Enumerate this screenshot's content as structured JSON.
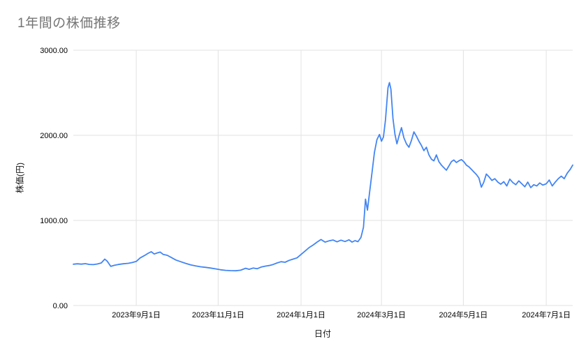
{
  "chart_data": {
    "type": "line",
    "title": "1年間の株価推移",
    "xlabel": "日付",
    "ylabel": "株価(円)",
    "ylim": [
      0,
      3000
    ],
    "grid": true,
    "legend": "none",
    "line_color": "#4285f4",
    "gridline_color": "#e2e2e2",
    "tick_label_color": "#000000",
    "y_ticks": [
      {
        "value": 0,
        "label": "0.00"
      },
      {
        "value": 1000,
        "label": "1000.00"
      },
      {
        "value": 2000,
        "label": "2000.00"
      },
      {
        "value": 3000,
        "label": "3000.00"
      }
    ],
    "x_ticks": [
      {
        "pos": 0.126,
        "label": "2023年9月1日"
      },
      {
        "pos": 0.29,
        "label": "2023年11月1日"
      },
      {
        "pos": 0.456,
        "label": "2024年1月1日"
      },
      {
        "pos": 0.617,
        "label": "2024年3月1日"
      },
      {
        "pos": 0.781,
        "label": "2024年5月1日"
      },
      {
        "pos": 0.947,
        "label": "2024年7月1日"
      }
    ],
    "series": [
      {
        "name": "株価",
        "points": [
          [
            0.0,
            485
          ],
          [
            0.008,
            490
          ],
          [
            0.016,
            486
          ],
          [
            0.024,
            492
          ],
          [
            0.032,
            483
          ],
          [
            0.04,
            480
          ],
          [
            0.048,
            488
          ],
          [
            0.056,
            500
          ],
          [
            0.063,
            545
          ],
          [
            0.068,
            520
          ],
          [
            0.075,
            460
          ],
          [
            0.082,
            472
          ],
          [
            0.09,
            482
          ],
          [
            0.1,
            490
          ],
          [
            0.11,
            496
          ],
          [
            0.118,
            505
          ],
          [
            0.126,
            518
          ],
          [
            0.134,
            560
          ],
          [
            0.142,
            585
          ],
          [
            0.15,
            615
          ],
          [
            0.156,
            632
          ],
          [
            0.162,
            605
          ],
          [
            0.168,
            618
          ],
          [
            0.174,
            628
          ],
          [
            0.18,
            600
          ],
          [
            0.188,
            590
          ],
          [
            0.196,
            565
          ],
          [
            0.205,
            535
          ],
          [
            0.215,
            515
          ],
          [
            0.225,
            495
          ],
          [
            0.235,
            478
          ],
          [
            0.245,
            465
          ],
          [
            0.255,
            455
          ],
          [
            0.265,
            448
          ],
          [
            0.275,
            440
          ],
          [
            0.285,
            430
          ],
          [
            0.295,
            420
          ],
          [
            0.305,
            413
          ],
          [
            0.315,
            410
          ],
          [
            0.325,
            408
          ],
          [
            0.335,
            415
          ],
          [
            0.345,
            438
          ],
          [
            0.352,
            425
          ],
          [
            0.36,
            440
          ],
          [
            0.368,
            432
          ],
          [
            0.376,
            452
          ],
          [
            0.384,
            462
          ],
          [
            0.392,
            470
          ],
          [
            0.4,
            482
          ],
          [
            0.408,
            500
          ],
          [
            0.416,
            515
          ],
          [
            0.424,
            508
          ],
          [
            0.432,
            530
          ],
          [
            0.44,
            545
          ],
          [
            0.448,
            560
          ],
          [
            0.456,
            600
          ],
          [
            0.464,
            640
          ],
          [
            0.472,
            680
          ],
          [
            0.48,
            710
          ],
          [
            0.488,
            745
          ],
          [
            0.496,
            775
          ],
          [
            0.504,
            745
          ],
          [
            0.512,
            760
          ],
          [
            0.52,
            770
          ],
          [
            0.528,
            748
          ],
          [
            0.536,
            768
          ],
          [
            0.544,
            752
          ],
          [
            0.552,
            772
          ],
          [
            0.558,
            745
          ],
          [
            0.564,
            762
          ],
          [
            0.57,
            750
          ],
          [
            0.576,
            800
          ],
          [
            0.581,
            920
          ],
          [
            0.585,
            1250
          ],
          [
            0.589,
            1120
          ],
          [
            0.593,
            1320
          ],
          [
            0.598,
            1560
          ],
          [
            0.603,
            1800
          ],
          [
            0.608,
            1950
          ],
          [
            0.613,
            2010
          ],
          [
            0.617,
            1930
          ],
          [
            0.621,
            1980
          ],
          [
            0.625,
            2180
          ],
          [
            0.63,
            2560
          ],
          [
            0.633,
            2620
          ],
          [
            0.636,
            2540
          ],
          [
            0.64,
            2200
          ],
          [
            0.644,
            2010
          ],
          [
            0.648,
            1900
          ],
          [
            0.652,
            1990
          ],
          [
            0.657,
            2090
          ],
          [
            0.662,
            1970
          ],
          [
            0.667,
            1900
          ],
          [
            0.672,
            1860
          ],
          [
            0.677,
            1940
          ],
          [
            0.682,
            2040
          ],
          [
            0.687,
            1990
          ],
          [
            0.692,
            1930
          ],
          [
            0.697,
            1880
          ],
          [
            0.702,
            1820
          ],
          [
            0.707,
            1860
          ],
          [
            0.712,
            1770
          ],
          [
            0.717,
            1720
          ],
          [
            0.722,
            1700
          ],
          [
            0.727,
            1770
          ],
          [
            0.732,
            1690
          ],
          [
            0.737,
            1650
          ],
          [
            0.742,
            1620
          ],
          [
            0.747,
            1590
          ],
          [
            0.752,
            1640
          ],
          [
            0.757,
            1690
          ],
          [
            0.762,
            1710
          ],
          [
            0.767,
            1680
          ],
          [
            0.772,
            1700
          ],
          [
            0.777,
            1715
          ],
          [
            0.782,
            1690
          ],
          [
            0.787,
            1650
          ],
          [
            0.792,
            1630
          ],
          [
            0.797,
            1600
          ],
          [
            0.802,
            1570
          ],
          [
            0.807,
            1540
          ],
          [
            0.812,
            1500
          ],
          [
            0.817,
            1390
          ],
          [
            0.822,
            1450
          ],
          [
            0.827,
            1545
          ],
          [
            0.832,
            1515
          ],
          [
            0.838,
            1470
          ],
          [
            0.844,
            1490
          ],
          [
            0.85,
            1450
          ],
          [
            0.856,
            1425
          ],
          [
            0.862,
            1455
          ],
          [
            0.868,
            1405
          ],
          [
            0.874,
            1485
          ],
          [
            0.88,
            1445
          ],
          [
            0.886,
            1420
          ],
          [
            0.892,
            1465
          ],
          [
            0.898,
            1430
          ],
          [
            0.904,
            1395
          ],
          [
            0.91,
            1450
          ],
          [
            0.916,
            1385
          ],
          [
            0.922,
            1420
          ],
          [
            0.928,
            1405
          ],
          [
            0.934,
            1440
          ],
          [
            0.94,
            1415
          ],
          [
            0.947,
            1430
          ],
          [
            0.953,
            1475
          ],
          [
            0.959,
            1405
          ],
          [
            0.965,
            1450
          ],
          [
            0.971,
            1490
          ],
          [
            0.977,
            1520
          ],
          [
            0.983,
            1490
          ],
          [
            0.989,
            1555
          ],
          [
            0.995,
            1600
          ],
          [
            1.0,
            1650
          ]
        ]
      }
    ]
  }
}
